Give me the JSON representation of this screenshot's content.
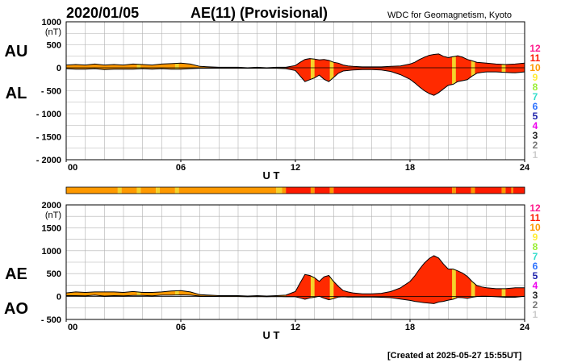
{
  "header": {
    "date": "2020/01/05",
    "title": "AE(11) (Provisional)",
    "source": "WDC for Geomagnetism, Kyoto"
  },
  "footer": {
    "created": "[Created at 2025-05-27 15:55UT]"
  },
  "colors": {
    "fill_red": "#ff2a00",
    "fill_orange": "#ff9900",
    "fill_yellow": "#f5d32a",
    "grid": "#b0b0b0",
    "curve": "#000000"
  },
  "legend": {
    "items": [
      {
        "label": "12",
        "color": "#ff1a8c"
      },
      {
        "label": "11",
        "color": "#ff1a00"
      },
      {
        "label": "10",
        "color": "#ff9900"
      },
      {
        "label": "9",
        "color": "#ffee33"
      },
      {
        "label": "8",
        "color": "#99ee33"
      },
      {
        "label": "7",
        "color": "#33ddcc"
      },
      {
        "label": "6",
        "color": "#2b70ff"
      },
      {
        "label": "5",
        "color": "#1c20aa"
      },
      {
        "label": "4",
        "color": "#ee00ee"
      },
      {
        "label": "3",
        "color": "#222222"
      },
      {
        "label": "2",
        "color": "#777777"
      },
      {
        "label": "1",
        "color": "#cccccc"
      }
    ]
  },
  "station_bar": {
    "segments": [
      {
        "start": 0.0,
        "end": 2.7,
        "level": 10
      },
      {
        "start": 2.7,
        "end": 2.9,
        "level": 9
      },
      {
        "start": 2.9,
        "end": 3.7,
        "level": 10
      },
      {
        "start": 3.7,
        "end": 3.9,
        "level": 9
      },
      {
        "start": 3.9,
        "end": 4.7,
        "level": 10
      },
      {
        "start": 4.7,
        "end": 4.9,
        "level": 9
      },
      {
        "start": 4.9,
        "end": 5.7,
        "level": 10
      },
      {
        "start": 5.7,
        "end": 5.9,
        "level": 9
      },
      {
        "start": 5.9,
        "end": 11.0,
        "level": 10
      },
      {
        "start": 11.0,
        "end": 11.3,
        "level": 9
      },
      {
        "start": 11.3,
        "end": 11.5,
        "level": 10
      },
      {
        "start": 11.5,
        "end": 12.8,
        "level": 11
      },
      {
        "start": 12.8,
        "end": 13.0,
        "level": 10
      },
      {
        "start": 13.0,
        "end": 13.8,
        "level": 11
      },
      {
        "start": 13.8,
        "end": 14.0,
        "level": 10
      },
      {
        "start": 14.0,
        "end": 20.2,
        "level": 11
      },
      {
        "start": 20.2,
        "end": 20.4,
        "level": 10
      },
      {
        "start": 20.4,
        "end": 21.2,
        "level": 11
      },
      {
        "start": 21.2,
        "end": 21.4,
        "level": 10
      },
      {
        "start": 21.4,
        "end": 22.8,
        "level": 11
      },
      {
        "start": 22.8,
        "end": 23.0,
        "level": 10
      },
      {
        "start": 23.0,
        "end": 23.3,
        "level": 11
      },
      {
        "start": 23.3,
        "end": 23.4,
        "level": 10
      },
      {
        "start": 23.4,
        "end": 24.0,
        "level": 11
      }
    ]
  },
  "chart_data": [
    {
      "type": "area",
      "panel": "AU/AL",
      "ylabel_units": "(nT)",
      "series_labels": [
        "AU",
        "AL"
      ],
      "xlabel": "U T",
      "xlim": [
        0,
        24
      ],
      "ylim": [
        -2000,
        1000
      ],
      "x_ticks": [
        "00",
        "06",
        "12",
        "18",
        "24"
      ],
      "y_ticks": [
        "1000",
        "500",
        "0",
        "- 500",
        "- 1000",
        "- 1500",
        "- 2000"
      ],
      "x": [
        0,
        0.5,
        1,
        1.5,
        2,
        2.5,
        3,
        3.5,
        4,
        4.5,
        5,
        5.5,
        6,
        6.5,
        7,
        7.5,
        8,
        8.5,
        9,
        9.5,
        10,
        10.5,
        11,
        11.5,
        12,
        12.25,
        12.5,
        12.75,
        13,
        13.25,
        13.5,
        13.75,
        14,
        14.25,
        14.5,
        14.75,
        15,
        15.5,
        16,
        16.5,
        17,
        17.5,
        18,
        18.25,
        18.5,
        18.75,
        19,
        19.25,
        19.5,
        19.75,
        20,
        20.25,
        20.5,
        20.75,
        21,
        21.25,
        21.5,
        21.75,
        22,
        22.5,
        23,
        23.5,
        24
      ],
      "series": [
        {
          "name": "AU",
          "values": [
            60,
            70,
            60,
            80,
            60,
            70,
            60,
            80,
            70,
            60,
            80,
            90,
            100,
            80,
            30,
            20,
            10,
            10,
            10,
            0,
            10,
            0,
            10,
            10,
            50,
            120,
            180,
            200,
            190,
            170,
            180,
            160,
            120,
            100,
            60,
            40,
            30,
            20,
            20,
            20,
            30,
            40,
            80,
            120,
            180,
            230,
            270,
            290,
            300,
            250,
            220,
            240,
            260,
            230,
            180,
            150,
            120,
            110,
            100,
            80,
            70,
            80,
            100
          ]
        },
        {
          "name": "AL",
          "values": [
            -20,
            -30,
            -30,
            -20,
            -40,
            -30,
            -30,
            -30,
            -20,
            -30,
            -20,
            -30,
            -30,
            -20,
            -10,
            -10,
            -10,
            -10,
            -10,
            -10,
            -10,
            -10,
            -10,
            -20,
            -60,
            -180,
            -300,
            -260,
            -220,
            -160,
            -250,
            -300,
            -210,
            -120,
            -70,
            -60,
            -50,
            -40,
            -40,
            -50,
            -80,
            -150,
            -250,
            -330,
            -420,
            -500,
            -560,
            -600,
            -540,
            -460,
            -380,
            -360,
            -300,
            -280,
            -260,
            -180,
            -120,
            -100,
            -90,
            -90,
            -100,
            -110,
            -90
          ]
        }
      ]
    },
    {
      "type": "area",
      "panel": "AE/AO",
      "ylabel_units": "(nT)",
      "series_labels": [
        "AE",
        "AO"
      ],
      "xlabel": "U T",
      "xlim": [
        0,
        24
      ],
      "ylim": [
        -500,
        2000
      ],
      "x_ticks": [
        "00",
        "06",
        "12",
        "18",
        "24"
      ],
      "y_ticks": [
        "2000",
        "1500",
        "1000",
        "500",
        "0",
        "- 500"
      ],
      "x": [
        0,
        0.5,
        1,
        1.5,
        2,
        2.5,
        3,
        3.5,
        4,
        4.5,
        5,
        5.5,
        6,
        6.5,
        7,
        7.5,
        8,
        8.5,
        9,
        9.5,
        10,
        10.5,
        11,
        11.5,
        12,
        12.25,
        12.5,
        12.75,
        13,
        13.25,
        13.5,
        13.75,
        14,
        14.25,
        14.5,
        14.75,
        15,
        15.5,
        16,
        16.5,
        17,
        17.5,
        18,
        18.25,
        18.5,
        18.75,
        19,
        19.25,
        19.5,
        19.75,
        20,
        20.25,
        20.5,
        20.75,
        21,
        21.25,
        21.5,
        21.75,
        22,
        22.5,
        23,
        23.5,
        24
      ],
      "series": [
        {
          "name": "AE",
          "values": [
            80,
            100,
            90,
            100,
            100,
            100,
            90,
            110,
            90,
            90,
            100,
            120,
            130,
            100,
            40,
            30,
            20,
            20,
            20,
            10,
            20,
            10,
            20,
            30,
            110,
            300,
            480,
            460,
            410,
            330,
            430,
            460,
            330,
            220,
            130,
            100,
            80,
            60,
            60,
            70,
            110,
            190,
            330,
            450,
            600,
            730,
            830,
            890,
            840,
            710,
            600,
            600,
            560,
            510,
            440,
            330,
            240,
            210,
            190,
            170,
            170,
            190,
            190
          ]
        },
        {
          "name": "AO",
          "values": [
            20,
            20,
            15,
            30,
            10,
            20,
            15,
            25,
            25,
            15,
            30,
            30,
            35,
            30,
            10,
            5,
            0,
            0,
            0,
            -5,
            0,
            -5,
            0,
            -5,
            -5,
            -30,
            -60,
            -30,
            -15,
            5,
            -35,
            -70,
            -45,
            -10,
            -5,
            -10,
            -10,
            -10,
            -10,
            -15,
            -25,
            -55,
            -85,
            -105,
            -120,
            -135,
            -145,
            -155,
            -120,
            -105,
            -80,
            -60,
            -20,
            -25,
            -40,
            -15,
            0,
            5,
            5,
            -5,
            -15,
            -15,
            5
          ]
        }
      ]
    }
  ]
}
